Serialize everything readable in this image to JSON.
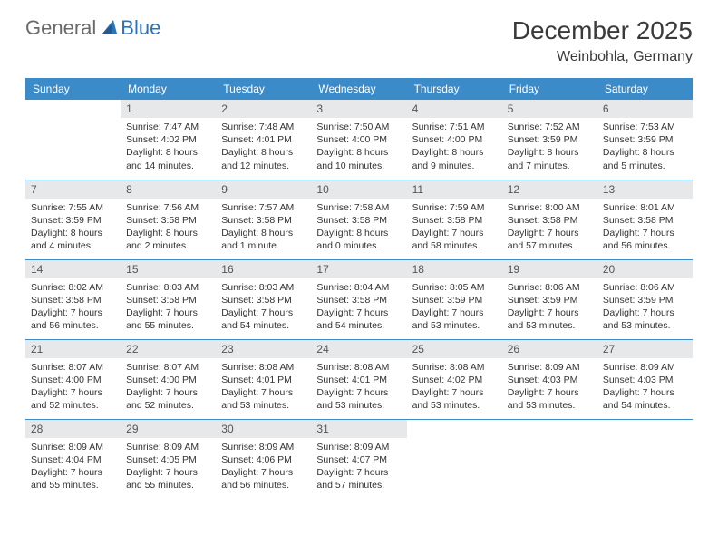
{
  "logo": {
    "text1": "General",
    "text2": "Blue"
  },
  "title": "December 2025",
  "location": "Weinbohla, Germany",
  "colors": {
    "header_bg": "#3b8bc9",
    "header_text": "#ffffff",
    "daynum_bg": "#e7e8e9",
    "divider": "#3b8bc9",
    "logo_gray": "#6a6a6a",
    "logo_blue": "#2b74b8"
  },
  "weekdays": [
    "Sunday",
    "Monday",
    "Tuesday",
    "Wednesday",
    "Thursday",
    "Friday",
    "Saturday"
  ],
  "weeks": [
    [
      {
        "n": "",
        "t": ""
      },
      {
        "n": "1",
        "t": "Sunrise: 7:47 AM\nSunset: 4:02 PM\nDaylight: 8 hours and 14 minutes."
      },
      {
        "n": "2",
        "t": "Sunrise: 7:48 AM\nSunset: 4:01 PM\nDaylight: 8 hours and 12 minutes."
      },
      {
        "n": "3",
        "t": "Sunrise: 7:50 AM\nSunset: 4:00 PM\nDaylight: 8 hours and 10 minutes."
      },
      {
        "n": "4",
        "t": "Sunrise: 7:51 AM\nSunset: 4:00 PM\nDaylight: 8 hours and 9 minutes."
      },
      {
        "n": "5",
        "t": "Sunrise: 7:52 AM\nSunset: 3:59 PM\nDaylight: 8 hours and 7 minutes."
      },
      {
        "n": "6",
        "t": "Sunrise: 7:53 AM\nSunset: 3:59 PM\nDaylight: 8 hours and 5 minutes."
      }
    ],
    [
      {
        "n": "7",
        "t": "Sunrise: 7:55 AM\nSunset: 3:59 PM\nDaylight: 8 hours and 4 minutes."
      },
      {
        "n": "8",
        "t": "Sunrise: 7:56 AM\nSunset: 3:58 PM\nDaylight: 8 hours and 2 minutes."
      },
      {
        "n": "9",
        "t": "Sunrise: 7:57 AM\nSunset: 3:58 PM\nDaylight: 8 hours and 1 minute."
      },
      {
        "n": "10",
        "t": "Sunrise: 7:58 AM\nSunset: 3:58 PM\nDaylight: 8 hours and 0 minutes."
      },
      {
        "n": "11",
        "t": "Sunrise: 7:59 AM\nSunset: 3:58 PM\nDaylight: 7 hours and 58 minutes."
      },
      {
        "n": "12",
        "t": "Sunrise: 8:00 AM\nSunset: 3:58 PM\nDaylight: 7 hours and 57 minutes."
      },
      {
        "n": "13",
        "t": "Sunrise: 8:01 AM\nSunset: 3:58 PM\nDaylight: 7 hours and 56 minutes."
      }
    ],
    [
      {
        "n": "14",
        "t": "Sunrise: 8:02 AM\nSunset: 3:58 PM\nDaylight: 7 hours and 56 minutes."
      },
      {
        "n": "15",
        "t": "Sunrise: 8:03 AM\nSunset: 3:58 PM\nDaylight: 7 hours and 55 minutes."
      },
      {
        "n": "16",
        "t": "Sunrise: 8:03 AM\nSunset: 3:58 PM\nDaylight: 7 hours and 54 minutes."
      },
      {
        "n": "17",
        "t": "Sunrise: 8:04 AM\nSunset: 3:58 PM\nDaylight: 7 hours and 54 minutes."
      },
      {
        "n": "18",
        "t": "Sunrise: 8:05 AM\nSunset: 3:59 PM\nDaylight: 7 hours and 53 minutes."
      },
      {
        "n": "19",
        "t": "Sunrise: 8:06 AM\nSunset: 3:59 PM\nDaylight: 7 hours and 53 minutes."
      },
      {
        "n": "20",
        "t": "Sunrise: 8:06 AM\nSunset: 3:59 PM\nDaylight: 7 hours and 53 minutes."
      }
    ],
    [
      {
        "n": "21",
        "t": "Sunrise: 8:07 AM\nSunset: 4:00 PM\nDaylight: 7 hours and 52 minutes."
      },
      {
        "n": "22",
        "t": "Sunrise: 8:07 AM\nSunset: 4:00 PM\nDaylight: 7 hours and 52 minutes."
      },
      {
        "n": "23",
        "t": "Sunrise: 8:08 AM\nSunset: 4:01 PM\nDaylight: 7 hours and 53 minutes."
      },
      {
        "n": "24",
        "t": "Sunrise: 8:08 AM\nSunset: 4:01 PM\nDaylight: 7 hours and 53 minutes."
      },
      {
        "n": "25",
        "t": "Sunrise: 8:08 AM\nSunset: 4:02 PM\nDaylight: 7 hours and 53 minutes."
      },
      {
        "n": "26",
        "t": "Sunrise: 8:09 AM\nSunset: 4:03 PM\nDaylight: 7 hours and 53 minutes."
      },
      {
        "n": "27",
        "t": "Sunrise: 8:09 AM\nSunset: 4:03 PM\nDaylight: 7 hours and 54 minutes."
      }
    ],
    [
      {
        "n": "28",
        "t": "Sunrise: 8:09 AM\nSunset: 4:04 PM\nDaylight: 7 hours and 55 minutes."
      },
      {
        "n": "29",
        "t": "Sunrise: 8:09 AM\nSunset: 4:05 PM\nDaylight: 7 hours and 55 minutes."
      },
      {
        "n": "30",
        "t": "Sunrise: 8:09 AM\nSunset: 4:06 PM\nDaylight: 7 hours and 56 minutes."
      },
      {
        "n": "31",
        "t": "Sunrise: 8:09 AM\nSunset: 4:07 PM\nDaylight: 7 hours and 57 minutes."
      },
      {
        "n": "",
        "t": ""
      },
      {
        "n": "",
        "t": ""
      },
      {
        "n": "",
        "t": ""
      }
    ]
  ]
}
